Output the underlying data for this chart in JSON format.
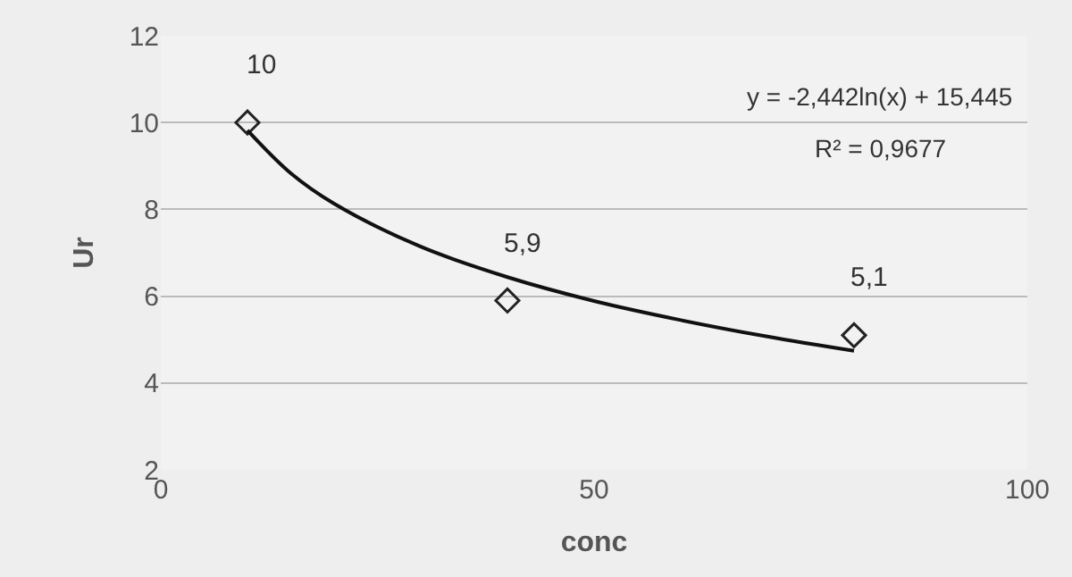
{
  "chart_data": {
    "type": "scatter",
    "xlabel": "conc",
    "ylabel": "Ur",
    "xlim": [
      0,
      100
    ],
    "xticks": [
      0,
      50,
      100
    ],
    "ylim": [
      2,
      12
    ],
    "yticks": [
      2,
      4,
      6,
      8,
      10,
      12
    ],
    "grid": "y",
    "series": [
      {
        "marker": "diamond",
        "color": "#222222",
        "x": [
          10,
          40,
          80
        ],
        "values": [
          10,
          5.9,
          5.1
        ],
        "value_labels": [
          "10",
          "5,9",
          "5,1"
        ]
      },
      {
        "type": "line",
        "color": "#111111",
        "x": [
          10,
          15,
          20,
          30,
          40,
          50,
          60,
          70,
          80
        ],
        "values": [
          9.82,
          8.83,
          8.13,
          7.14,
          6.44,
          5.89,
          5.45,
          5.07,
          4.74
        ]
      }
    ],
    "annotations": [
      "y = -2,442ln(x) + 15,445",
      "R² = 0,9677"
    ]
  }
}
